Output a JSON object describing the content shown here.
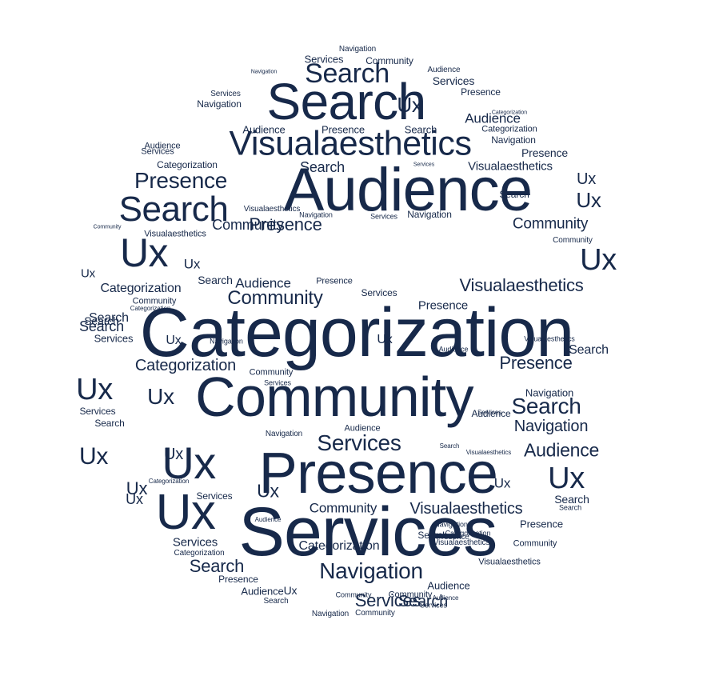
{
  "colors": {
    "background": "#ffffff",
    "text": "#17294a"
  },
  "words": [
    {
      "text": "Navigation"
    },
    {
      "text": "Services"
    },
    {
      "text": "Community"
    },
    {
      "text": "Navigation"
    },
    {
      "text": "Search"
    },
    {
      "text": "Audience"
    },
    {
      "text": "Ux"
    },
    {
      "text": "Services"
    },
    {
      "text": "Services"
    },
    {
      "text": "Navigation"
    },
    {
      "text": "Search"
    },
    {
      "text": "Presence"
    },
    {
      "text": "Audience"
    },
    {
      "text": "Categorization"
    },
    {
      "text": "Audience"
    },
    {
      "text": "Presence"
    },
    {
      "text": "Search"
    },
    {
      "text": "Navigation"
    },
    {
      "text": "Services"
    },
    {
      "text": "Visualaesthetics"
    },
    {
      "text": "Presence"
    },
    {
      "text": "Categorization"
    },
    {
      "text": "Search"
    },
    {
      "text": "Services"
    },
    {
      "text": "Visualaesthetics"
    },
    {
      "text": "Audience"
    },
    {
      "text": "Presence"
    },
    {
      "text": "Categorization"
    },
    {
      "text": "Ux"
    },
    {
      "text": "Search"
    },
    {
      "text": "Ux"
    },
    {
      "text": "Audience"
    },
    {
      "text": "Search"
    },
    {
      "text": "Navigation"
    },
    {
      "text": "Presence"
    },
    {
      "text": "Visualaesthetics"
    },
    {
      "text": "Services"
    },
    {
      "text": "Community"
    },
    {
      "text": "Community"
    },
    {
      "text": "Visualaesthetics"
    },
    {
      "text": "Community"
    },
    {
      "text": "Navigation"
    },
    {
      "text": "Ux"
    },
    {
      "text": "Ux"
    },
    {
      "text": "Community"
    },
    {
      "text": "Ux"
    },
    {
      "text": "Search"
    },
    {
      "text": "Audience"
    },
    {
      "text": "Presence"
    },
    {
      "text": "Categorization"
    },
    {
      "text": "Services"
    },
    {
      "text": "Visualaesthetics"
    },
    {
      "text": "Community"
    },
    {
      "text": "Presence"
    },
    {
      "text": "Search"
    },
    {
      "text": "Community"
    },
    {
      "text": "Categorization"
    },
    {
      "text": "Categorization"
    },
    {
      "text": "Search"
    },
    {
      "text": "Search"
    },
    {
      "text": "Services"
    },
    {
      "text": "Ux"
    },
    {
      "text": "Ux"
    },
    {
      "text": "Visualaesthetics"
    },
    {
      "text": "Search"
    },
    {
      "text": "Audience"
    },
    {
      "text": "Presence"
    },
    {
      "text": "Categorization"
    },
    {
      "text": "Ux"
    },
    {
      "text": "Navigation"
    },
    {
      "text": "Community"
    },
    {
      "text": "Services"
    },
    {
      "text": "Ux"
    },
    {
      "text": "Ux"
    },
    {
      "text": "Community"
    },
    {
      "text": "Search"
    },
    {
      "text": "Navigation"
    },
    {
      "text": "Services"
    },
    {
      "text": "Audience"
    },
    {
      "text": "Search"
    },
    {
      "text": "Navigation"
    },
    {
      "text": "Services"
    },
    {
      "text": "Navigation"
    },
    {
      "text": "Audience"
    },
    {
      "text": "Ux"
    },
    {
      "text": "Ux"
    },
    {
      "text": "Ux"
    },
    {
      "text": "Ux"
    },
    {
      "text": "Ux"
    },
    {
      "text": "Presence"
    },
    {
      "text": "Ux"
    },
    {
      "text": "Ux"
    },
    {
      "text": "Services"
    },
    {
      "text": "Community"
    },
    {
      "text": "Visualaesthetics"
    },
    {
      "text": "Search"
    },
    {
      "text": "Search"
    },
    {
      "text": "Presence"
    },
    {
      "text": "Ux"
    },
    {
      "text": "Ux"
    },
    {
      "text": "Audience"
    },
    {
      "text": "Services"
    },
    {
      "text": "Services"
    },
    {
      "text": "Categorization"
    },
    {
      "text": "Search"
    },
    {
      "text": "Presence"
    },
    {
      "text": "Navigation"
    },
    {
      "text": "Community"
    },
    {
      "text": "Categorization"
    },
    {
      "text": "Categorization"
    },
    {
      "text": "Search"
    },
    {
      "text": "Audience"
    },
    {
      "text": "Navigation"
    },
    {
      "text": "Search"
    },
    {
      "text": "Services"
    },
    {
      "text": "Community"
    },
    {
      "text": "Services"
    },
    {
      "text": "Ux"
    },
    {
      "text": "Community"
    },
    {
      "text": "Visualaesthetics"
    },
    {
      "text": "Audience"
    },
    {
      "text": "Visualaesthetics"
    },
    {
      "text": "Presence"
    },
    {
      "text": "Search"
    },
    {
      "text": "Navigation"
    },
    {
      "text": "Audience"
    },
    {
      "text": "Categorization"
    },
    {
      "text": "Community"
    },
    {
      "text": "Visualaesthetics"
    },
    {
      "text": "Audience"
    },
    {
      "text": "Search"
    },
    {
      "text": "Services"
    },
    {
      "text": "Navigation"
    },
    {
      "text": "Community"
    },
    {
      "text": "Presence"
    },
    {
      "text": "Categorization"
    },
    {
      "text": "Visualaesthetics"
    },
    {
      "text": "Audience"
    },
    {
      "text": "Visualaesthetics"
    },
    {
      "text": "Ux"
    }
  ]
}
